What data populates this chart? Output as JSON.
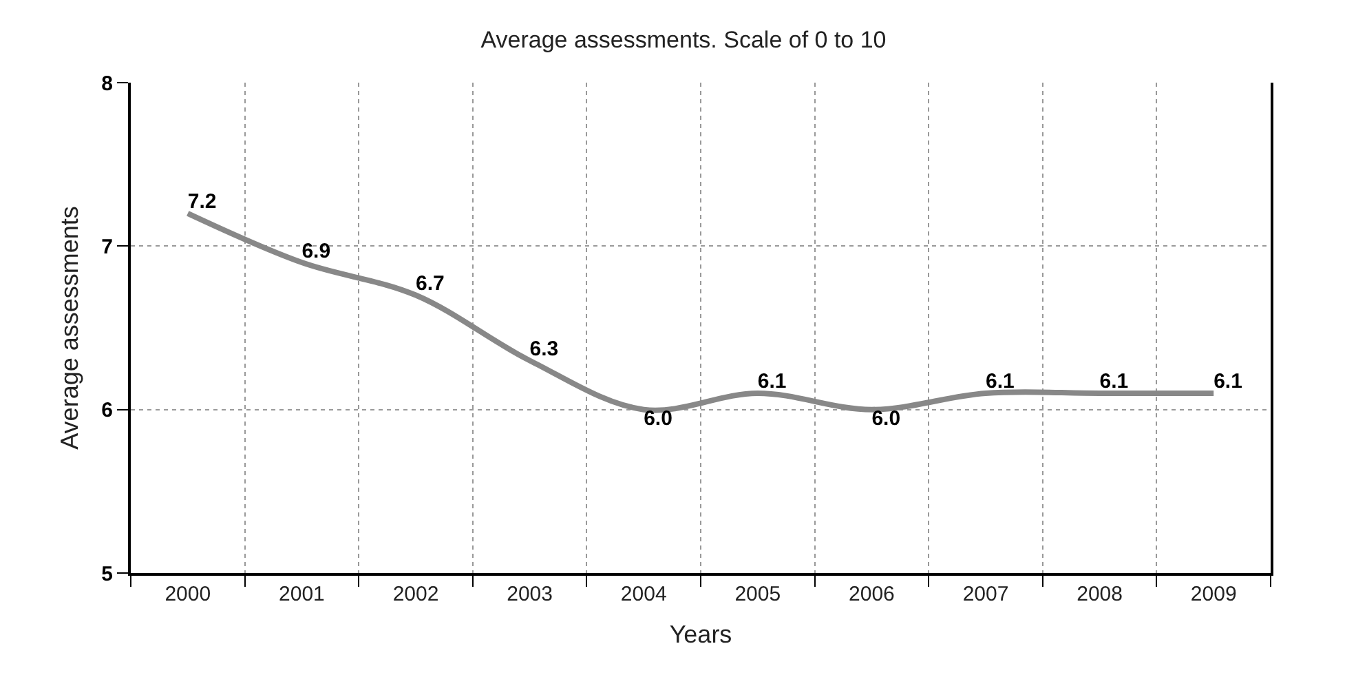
{
  "chart_data": {
    "type": "line",
    "title": "Average assessments. Scale of 0 to 10",
    "xlabel": "Years",
    "ylabel": "Average assessments",
    "categories": [
      "2000",
      "2001",
      "2002",
      "2003",
      "2004",
      "2005",
      "2006",
      "2007",
      "2008",
      "2009"
    ],
    "series": [
      {
        "color": "#888888",
        "values": [
          7.2,
          6.9,
          6.7,
          6.3,
          6.0,
          6.1,
          6.0,
          6.1,
          6.1,
          6.1
        ],
        "value_labels": [
          "7.2",
          "6.9",
          "6.7",
          "6.3",
          "6.0",
          "6.1",
          "6.0",
          "6.1",
          "6.1",
          "6.1"
        ]
      }
    ],
    "ylim": [
      5,
      8
    ],
    "yticks": [
      5,
      6,
      7,
      8
    ],
    "grid": true,
    "legend": false,
    "marker": "none",
    "line_style": "solid"
  }
}
